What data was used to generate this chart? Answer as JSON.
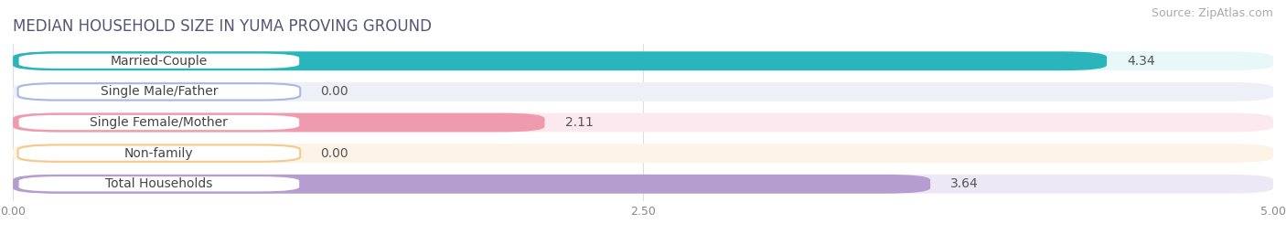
{
  "title": "MEDIAN HOUSEHOLD SIZE IN YUMA PROVING GROUND",
  "source": "Source: ZipAtlas.com",
  "categories": [
    "Married-Couple",
    "Single Male/Father",
    "Single Female/Mother",
    "Non-family",
    "Total Households"
  ],
  "values": [
    4.34,
    0.0,
    2.11,
    0.0,
    3.64
  ],
  "bar_colors": [
    "#2ab5bc",
    "#a8b8e0",
    "#f09ab0",
    "#f5c98a",
    "#b59dd0"
  ],
  "bar_bg_colors": [
    "#e8f7f8",
    "#eef0f8",
    "#fce8ef",
    "#fdf3e7",
    "#ede8f5"
  ],
  "label_border_colors": [
    "#2ab5bc",
    "#a8b8e0",
    "#f09ab0",
    "#f5c98a",
    "#b59dd0"
  ],
  "value_colors": [
    "#ffffff",
    "#888888",
    "#888888",
    "#888888",
    "#ffffff"
  ],
  "xlim": [
    0,
    5.0
  ],
  "xticks": [
    0.0,
    2.5,
    5.0
  ],
  "xtick_labels": [
    "0.00",
    "2.50",
    "5.00"
  ],
  "background_color": "#ffffff",
  "title_fontsize": 12,
  "source_fontsize": 9,
  "value_fontsize": 10,
  "label_fontsize": 10
}
